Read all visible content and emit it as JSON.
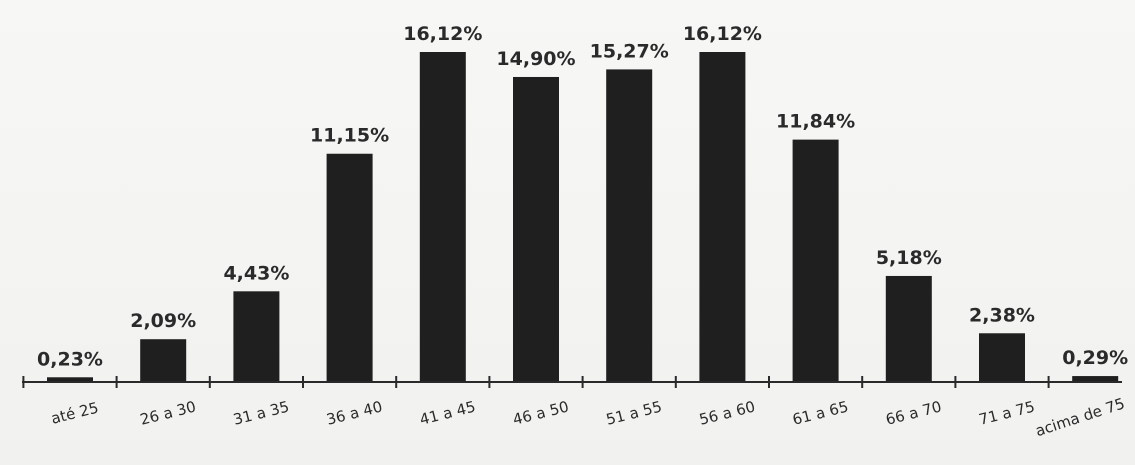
{
  "chart_data": {
    "type": "bar",
    "categories": [
      "até 25",
      "26 a 30",
      "31 a 35",
      "36 a 40",
      "41 a 45",
      "46 a 50",
      "51 a 55",
      "56 a 60",
      "61 a 65",
      "66 a 70",
      "71 a 75",
      "acima de 75"
    ],
    "values": [
      0.23,
      2.09,
      4.43,
      11.15,
      16.12,
      14.9,
      15.27,
      16.12,
      11.84,
      5.18,
      2.38,
      0.29
    ],
    "data_labels": [
      "0,23%",
      "2,09%",
      "4,43%",
      "11,15%",
      "16,12%",
      "14,90%",
      "15,27%",
      "16,12%",
      "11,84%",
      "5,18%",
      "2,38%",
      "0,29%"
    ],
    "title": "",
    "xlabel": "",
    "ylabel": "",
    "ylim": [
      0,
      16.12
    ],
    "grid": false,
    "legend": "none",
    "bar_color": "#1f1f1f",
    "axis_color": "#2a2a2a"
  }
}
